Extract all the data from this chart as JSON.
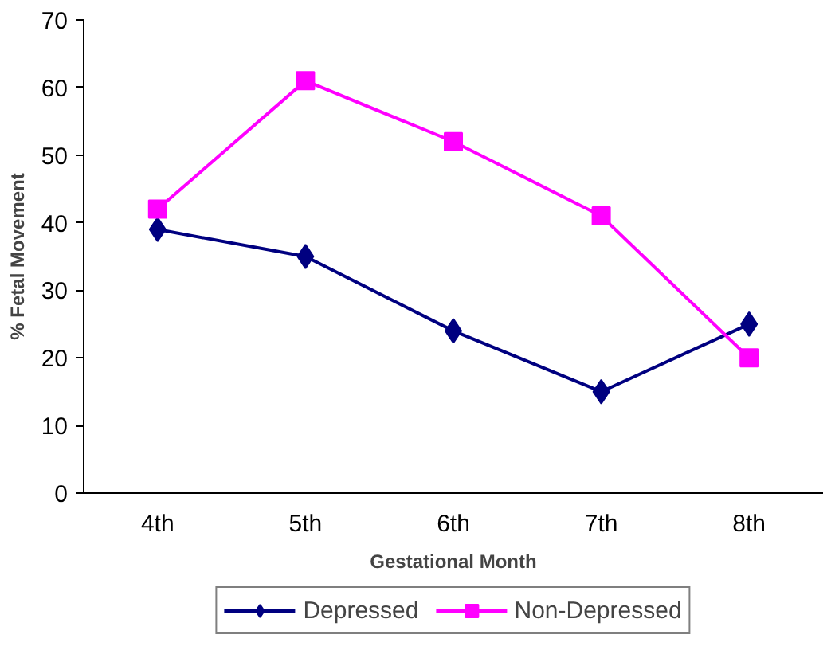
{
  "chart_data": {
    "type": "line",
    "xlabel": "Gestational Month",
    "ylabel": "% Fetal Movement",
    "categories": [
      "4th",
      "5th",
      "6th",
      "7th",
      "8th"
    ],
    "series": [
      {
        "name": "Depressed",
        "color": "#000080",
        "values": [
          39,
          35,
          24,
          15,
          25
        ],
        "marker": "diamond"
      },
      {
        "name": "Non-Depressed",
        "color": "#ff00ff",
        "values": [
          42,
          61,
          52,
          41,
          20
        ],
        "marker": "square"
      }
    ],
    "ylim": [
      0,
      70
    ],
    "yticks": [
      0,
      10,
      20,
      30,
      40,
      50,
      60,
      70
    ],
    "grid": false,
    "legend": "bottom",
    "line_style": "solid"
  }
}
